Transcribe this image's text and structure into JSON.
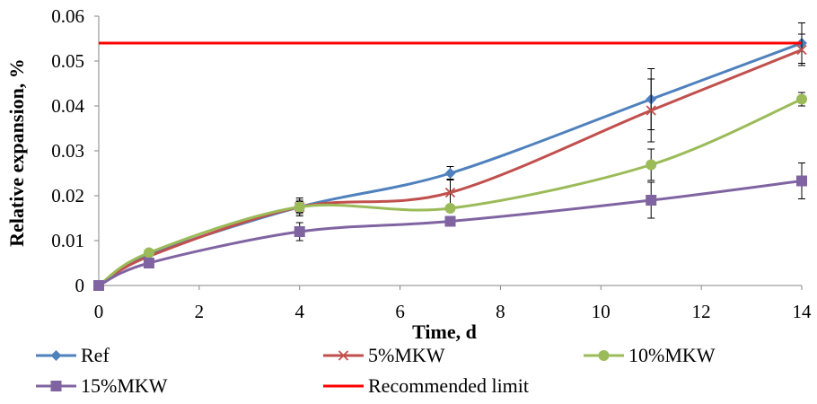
{
  "chart_data": {
    "type": "line",
    "title": "",
    "xlabel": "Time, d",
    "ylabel": "Relative expansion, %",
    "xlim": [
      0,
      14
    ],
    "ylim": [
      0,
      0.06
    ],
    "xticks": [
      "0",
      "2",
      "4",
      "6",
      "8",
      "10",
      "12",
      "14"
    ],
    "yticks": [
      "0",
      "0.01",
      "0.02",
      "0.03",
      "0.04",
      "0.05",
      "0.06"
    ],
    "grid": false,
    "legend_position": "bottom",
    "series": [
      {
        "name": "Ref",
        "color": "#4f81bd",
        "marker": "diamond",
        "x": [
          0,
          1,
          4,
          7,
          11,
          14
        ],
        "y": [
          0,
          0.0068,
          0.0175,
          0.025,
          0.0415,
          0.054
        ],
        "err": [
          0,
          0,
          0.0012,
          0.0015,
          0.0068,
          0.0045
        ]
      },
      {
        "name": "5%MKW",
        "color": "#c0504d",
        "marker": "x",
        "x": [
          0,
          1,
          4,
          7,
          11,
          14
        ],
        "y": [
          0,
          0.0065,
          0.0175,
          0.0207,
          0.039,
          0.0525
        ],
        "err": [
          0,
          0,
          0.002,
          0.003,
          0.007,
          0.0035
        ]
      },
      {
        "name": "10%MKW",
        "color": "#9bbb59",
        "marker": "circle",
        "x": [
          0,
          1,
          4,
          7,
          11,
          14
        ],
        "y": [
          0,
          0.0073,
          0.0175,
          0.0172,
          0.0269,
          0.0415
        ],
        "err": [
          0,
          0,
          0.0015,
          0,
          0.0035,
          0.0015
        ]
      },
      {
        "name": "15%MKW",
        "color": "#8064a2",
        "marker": "square",
        "x": [
          0,
          1,
          4,
          7,
          11,
          14
        ],
        "y": [
          0,
          0.005,
          0.012,
          0.0143,
          0.019,
          0.0233
        ],
        "err": [
          0,
          0,
          0.002,
          0,
          0.004,
          0.004
        ]
      },
      {
        "name": "Recommended limit",
        "color": "#ff0000",
        "marker": "none",
        "x": [
          0,
          14
        ],
        "y": [
          0.054,
          0.054
        ]
      }
    ]
  }
}
